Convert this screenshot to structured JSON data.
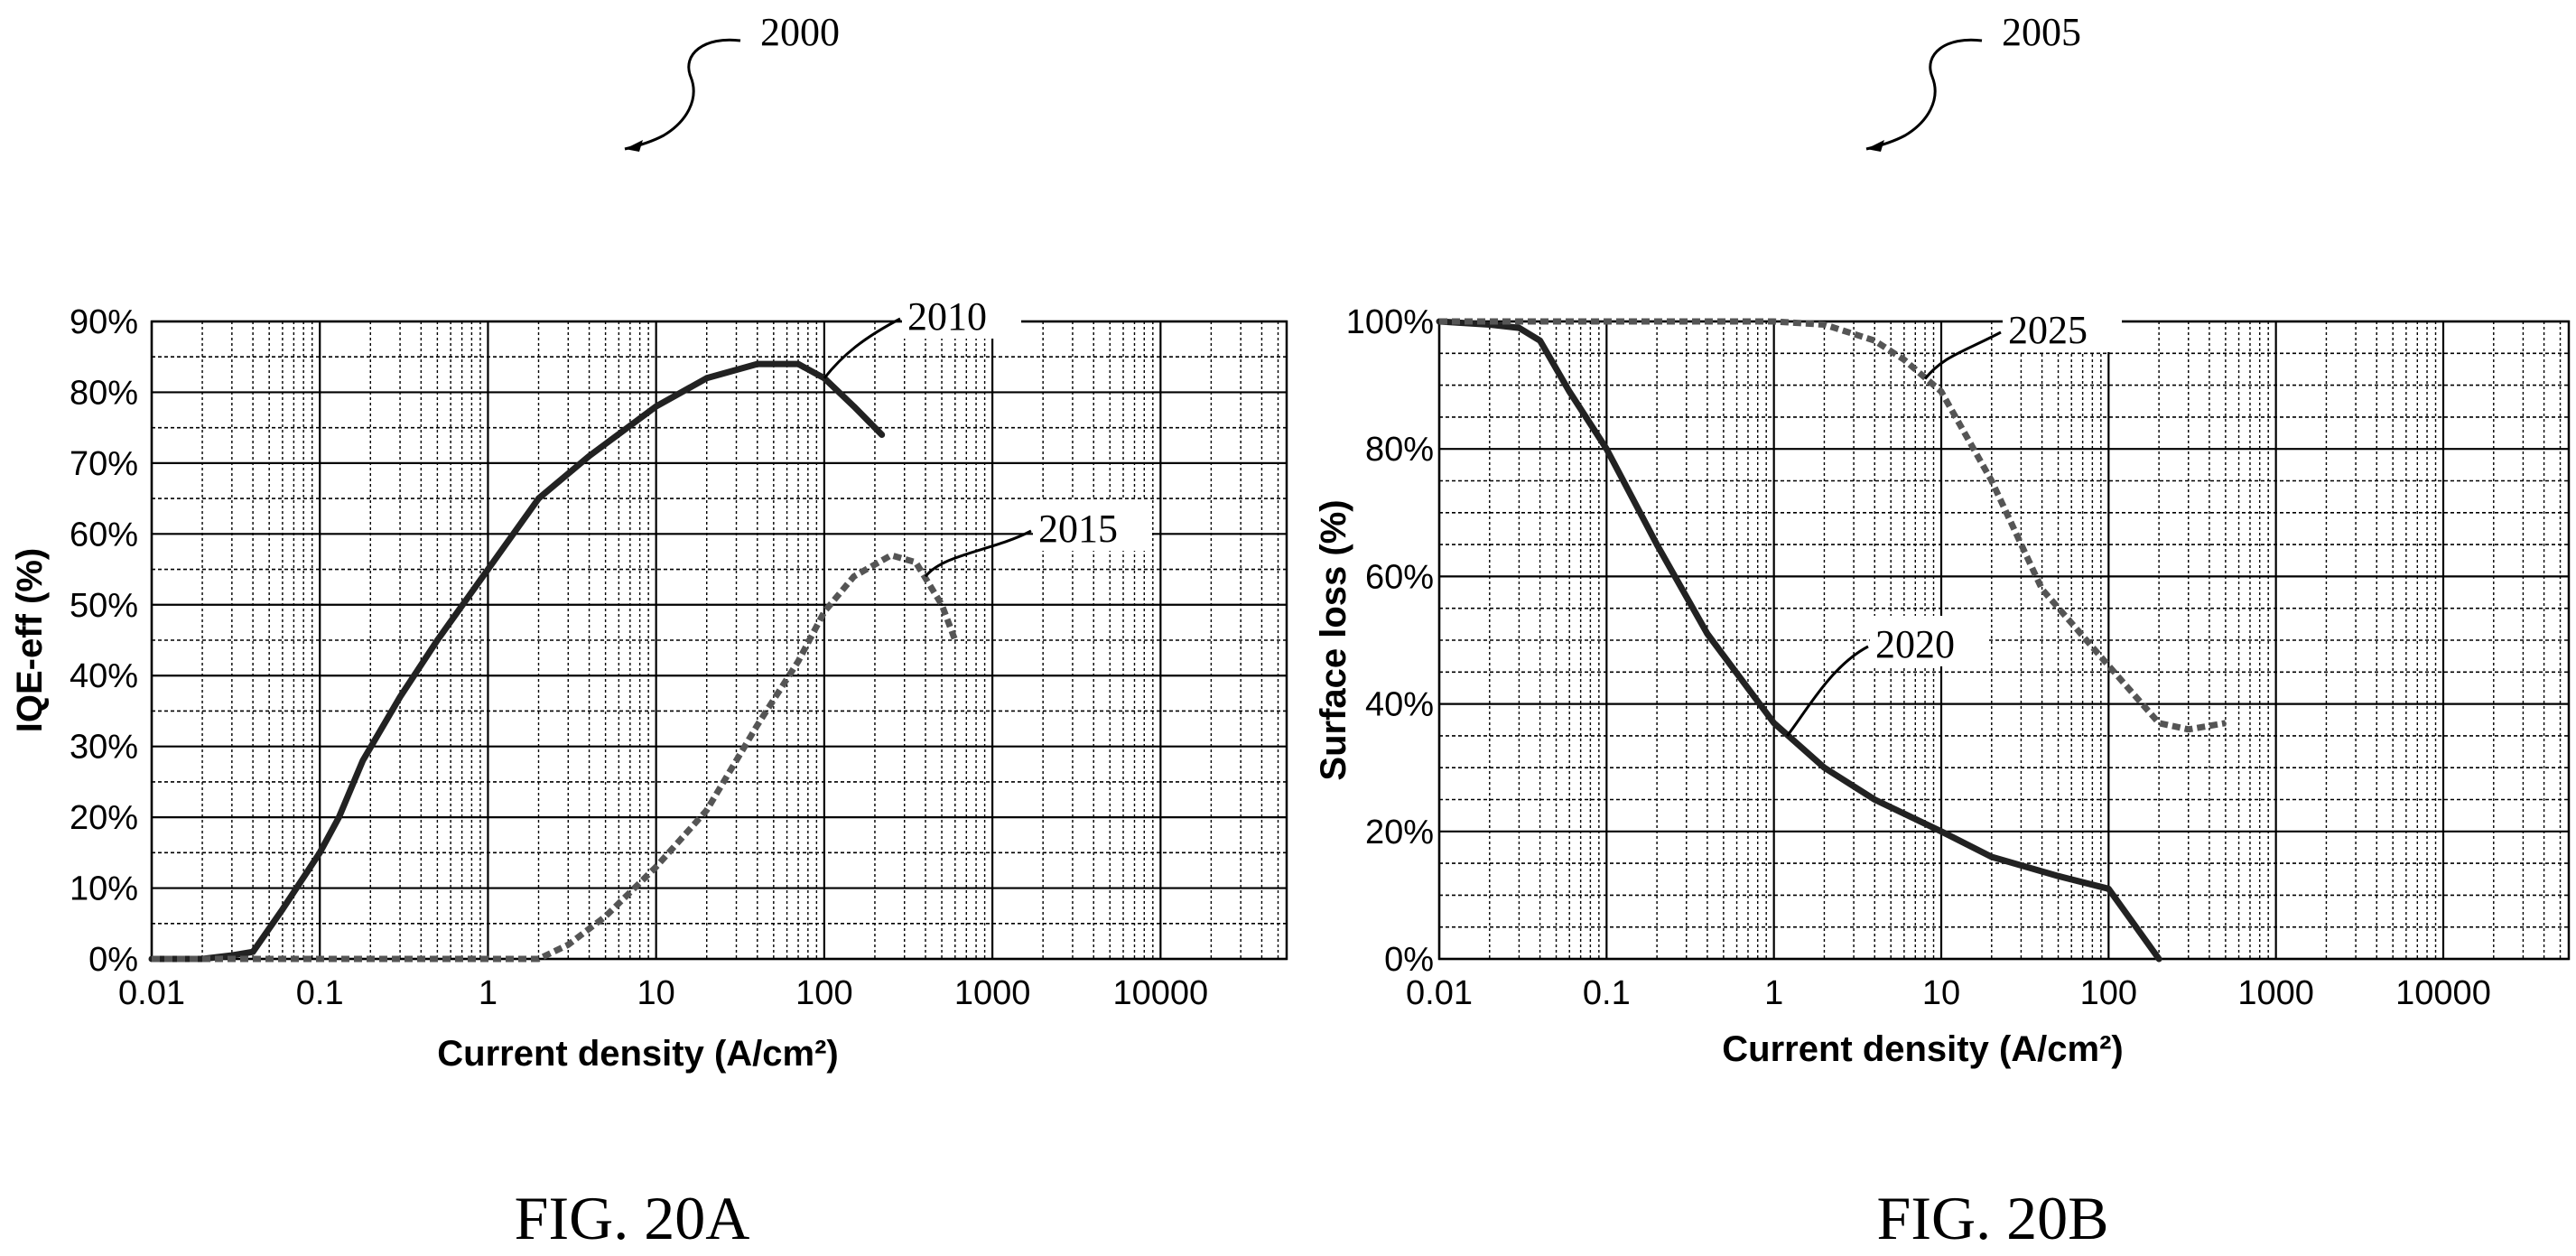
{
  "figure_refs": {
    "left": "2000",
    "right": "2005"
  },
  "chart_data": [
    {
      "type": "line",
      "caption": "FIG. 20A",
      "xlabel": "Current density (A/cm²)",
      "ylabel": "IQE-eff (%)",
      "x_scale": "log",
      "xlim": [
        0.01,
        10000
      ],
      "ylim": [
        0,
        90
      ],
      "x_ticks": [
        "0.01",
        "0.1",
        "1",
        "10",
        "100",
        "1000",
        "10000"
      ],
      "y_ticks": [
        "0%",
        "10%",
        "20%",
        "30%",
        "40%",
        "50%",
        "60%",
        "70%",
        "80%",
        "90%"
      ],
      "grid": true,
      "series": [
        {
          "name": "2010",
          "style": "solid",
          "x": [
            0.01,
            0.02,
            0.03,
            0.04,
            0.06,
            0.1,
            0.13,
            0.18,
            0.3,
            0.5,
            1,
            2,
            4,
            10,
            20,
            40,
            70,
            100,
            150,
            220
          ],
          "y": [
            0,
            0,
            0.5,
            1,
            7,
            15,
            20,
            28,
            37,
            45,
            55,
            65,
            71,
            78,
            82,
            84,
            84,
            82,
            78,
            74
          ]
        },
        {
          "name": "2015",
          "style": "dashed",
          "x": [
            0.01,
            1,
            2,
            3,
            5,
            10,
            20,
            40,
            70,
            100,
            150,
            250,
            350,
            500,
            600
          ],
          "y": [
            0,
            0,
            0,
            2,
            6,
            13,
            21,
            33,
            42,
            49,
            54,
            57,
            56,
            50,
            45
          ]
        }
      ]
    },
    {
      "type": "line",
      "caption": "FIG. 20B",
      "xlabel": "Current density (A/cm²)",
      "ylabel": "Surface loss (%)",
      "x_scale": "log",
      "xlim": [
        0.01,
        10000
      ],
      "ylim": [
        0,
        100
      ],
      "x_ticks": [
        "0.01",
        "0.1",
        "1",
        "10",
        "100",
        "1000",
        "10000"
      ],
      "y_ticks": [
        "0%",
        "20%",
        "40%",
        "60%",
        "80%",
        "100%"
      ],
      "grid": true,
      "series": [
        {
          "name": "2020",
          "style": "solid",
          "x": [
            0.01,
            0.02,
            0.03,
            0.04,
            0.06,
            0.1,
            0.2,
            0.4,
            1,
            2,
            4,
            10,
            20,
            50,
            100,
            200
          ],
          "y": [
            100,
            99.5,
            99,
            97,
            89,
            80,
            65,
            51,
            37,
            30,
            25,
            20,
            16,
            13,
            11,
            0
          ]
        },
        {
          "name": "2025",
          "style": "dashed",
          "x": [
            0.01,
            0.1,
            0.5,
            1,
            2,
            4,
            6,
            10,
            20,
            40,
            100,
            200,
            300,
            500
          ],
          "y": [
            100,
            100,
            100,
            100,
            99.5,
            97,
            94,
            89,
            75,
            58,
            46,
            37,
            36,
            37
          ]
        }
      ]
    }
  ]
}
